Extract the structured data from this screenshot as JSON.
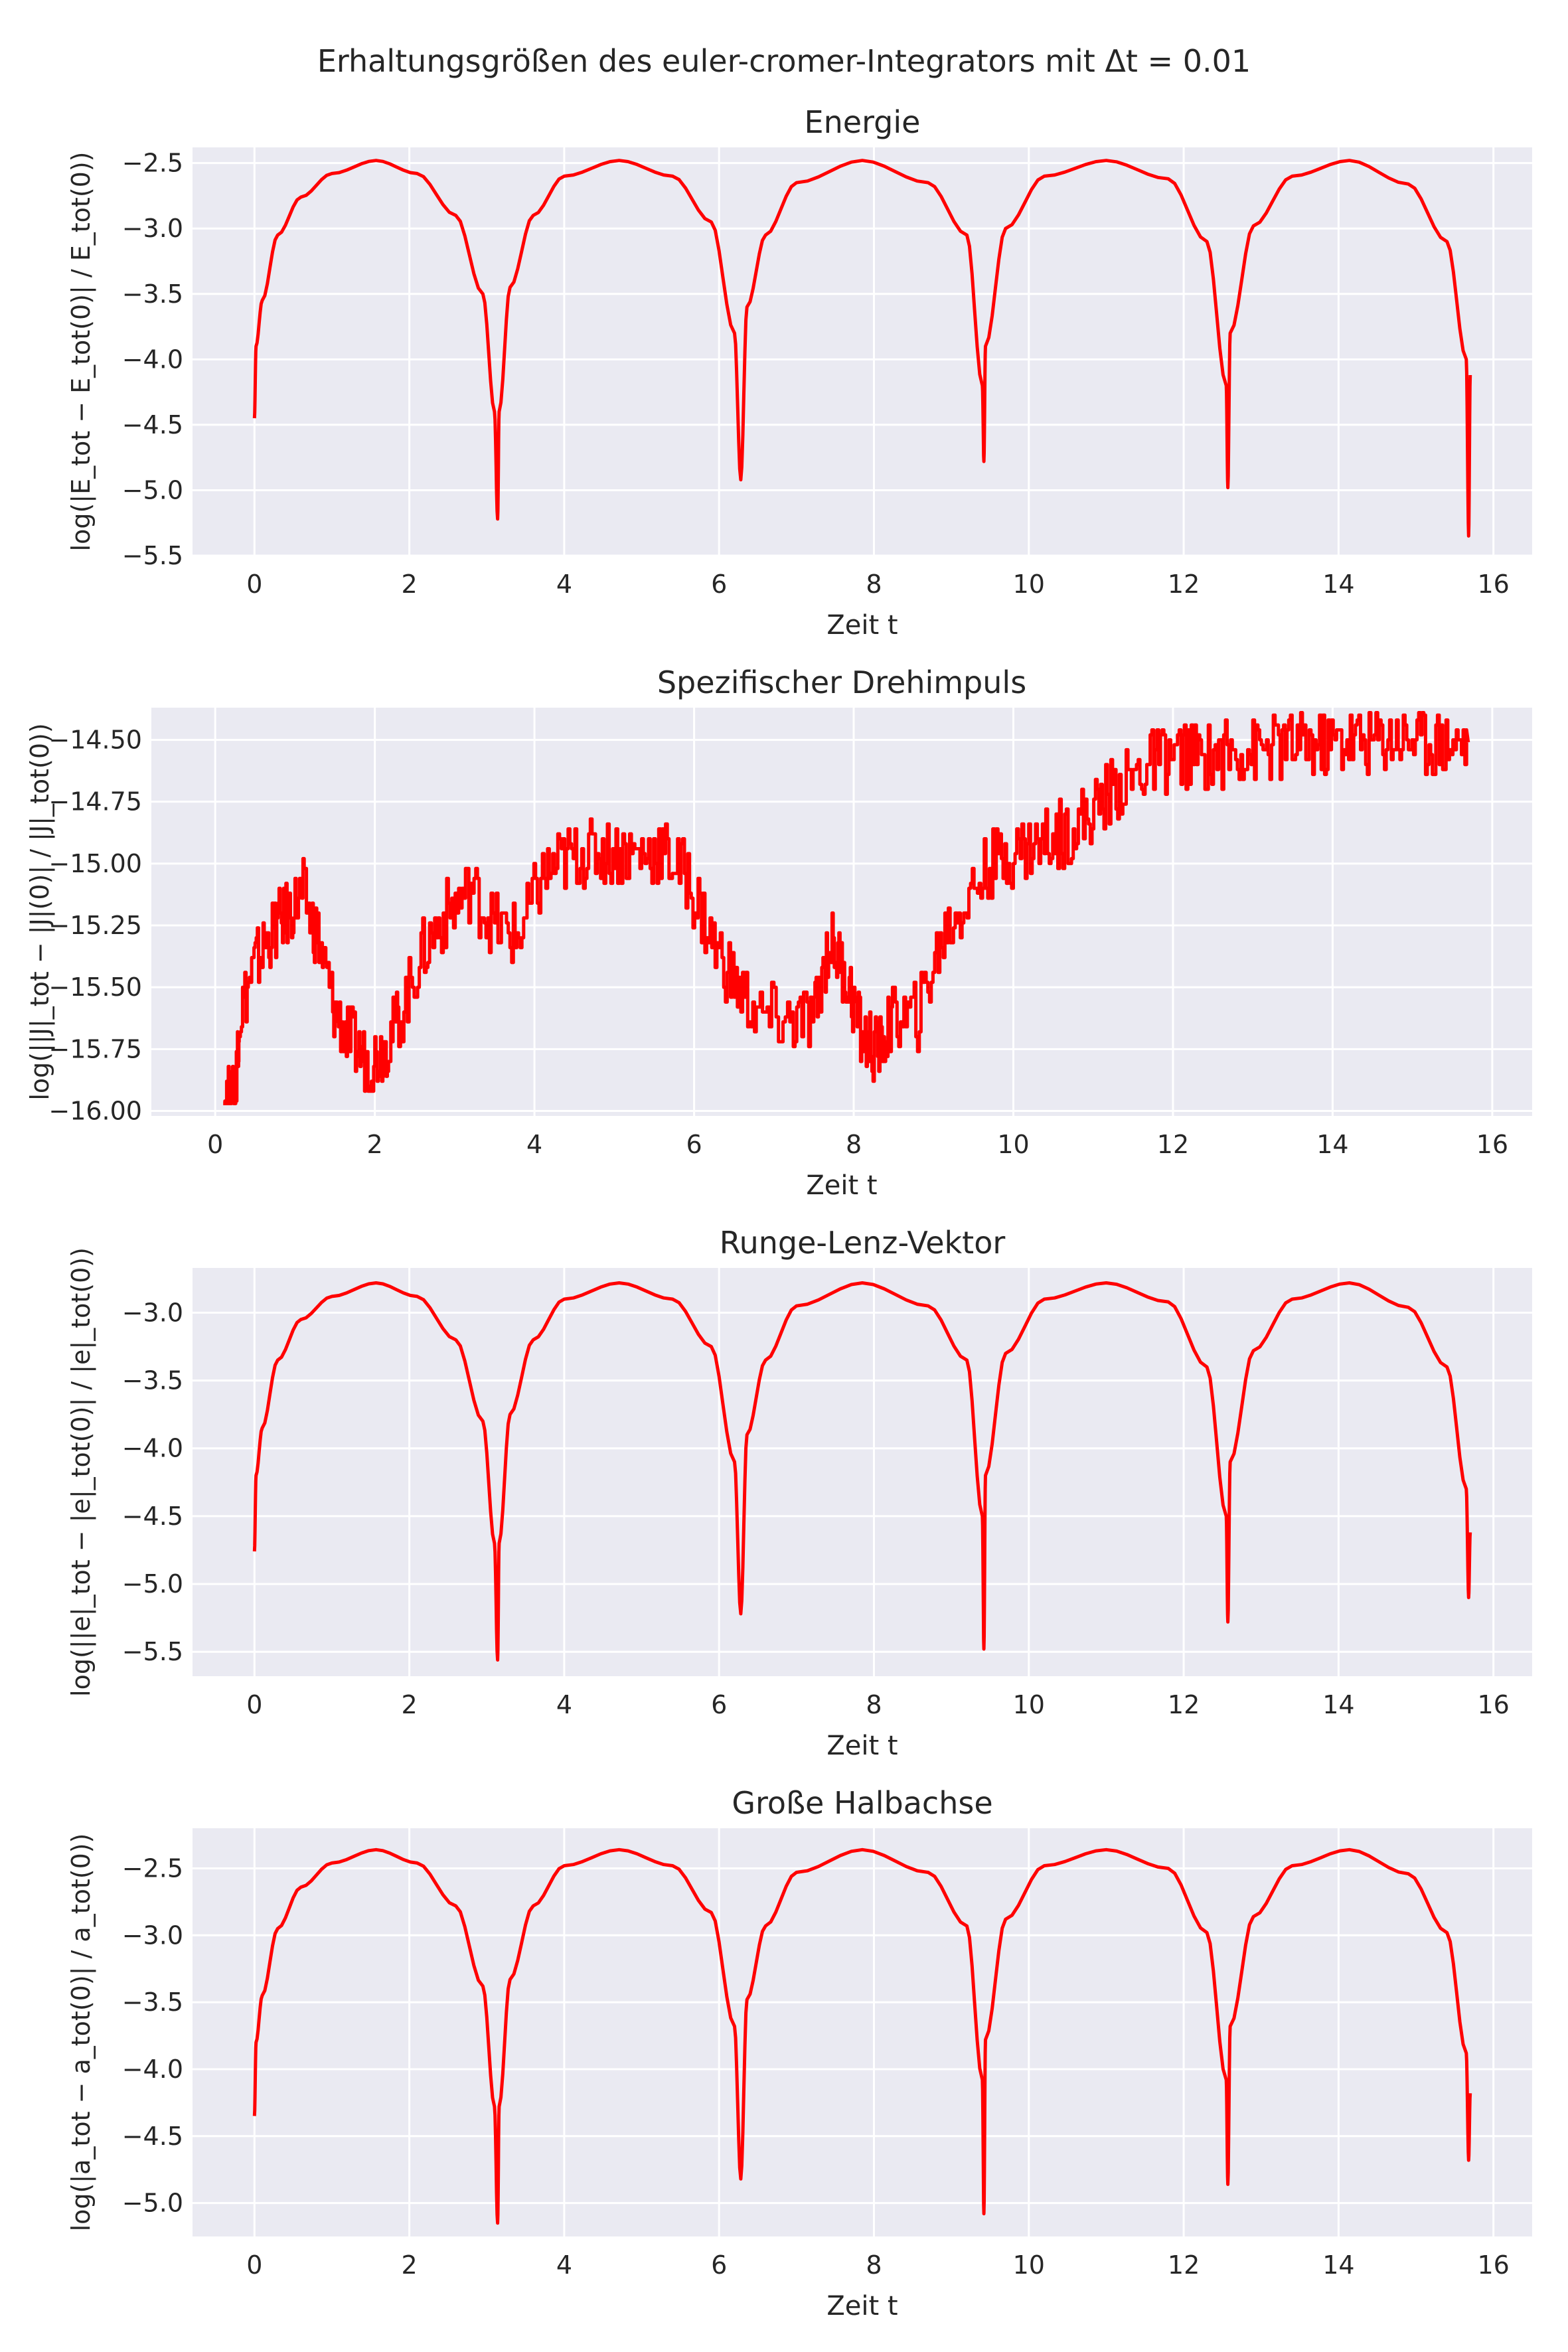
{
  "figure": {
    "suptitle": "Erhaltungsgrößen des euler-cromer-Integrators mit Δt = 0.01",
    "plot_bg": "#eaeaf2",
    "grid_color": "#ffffff",
    "line_color": "#ff0000"
  },
  "chart_data": [
    {
      "type": "line",
      "title": "Energie",
      "xlabel": "Zeit t",
      "ylabel": "log(|E_tot − E_tot(0)| / E_tot(0))",
      "xlim": [
        -0.8,
        16.5
      ],
      "ylim": [
        -5.5,
        -2.38
      ],
      "xticks": [
        0,
        2,
        4,
        6,
        8,
        10,
        12,
        14,
        16
      ],
      "yticks": [
        -2.5,
        -3.0,
        -3.5,
        -4.0,
        -4.5,
        -5.0,
        -5.5
      ],
      "ytick_labels": [
        "−2.5",
        "−3.0",
        "−3.5",
        "−4.0",
        "−4.5",
        "−5.0",
        "−5.5"
      ],
      "grid": true,
      "series": [
        {
          "color": "#ff0000",
          "pattern": "periodic_arches",
          "x": [
            0.0,
            0.02,
            0.1,
            0.3,
            0.6,
            1.0,
            1.57,
            2.1,
            2.6,
            2.95,
            3.1,
            3.14,
            3.16,
            3.3,
            3.6,
            4.0,
            4.71,
            5.4,
            5.9,
            6.2,
            6.28,
            6.36,
            6.6,
            7.0,
            7.85,
            8.7,
            9.2,
            9.4,
            9.42,
            9.44,
            9.7,
            10.2,
            11.0,
            11.8,
            12.3,
            12.55,
            12.57,
            12.6,
            12.9,
            13.4,
            14.14,
            14.9,
            15.4,
            15.65,
            15.68,
            15.7
          ],
          "y": [
            -4.45,
            -3.9,
            -3.55,
            -3.05,
            -2.76,
            -2.58,
            -2.48,
            -2.58,
            -2.9,
            -3.5,
            -4.4,
            -5.22,
            -4.4,
            -3.45,
            -2.9,
            -2.6,
            -2.48,
            -2.6,
            -2.95,
            -3.8,
            -4.92,
            -3.6,
            -3.05,
            -2.65,
            -2.48,
            -2.65,
            -3.05,
            -4.2,
            -4.78,
            -3.9,
            -3.0,
            -2.6,
            -2.48,
            -2.62,
            -3.1,
            -4.2,
            -4.98,
            -3.8,
            -2.98,
            -2.6,
            -2.48,
            -2.66,
            -3.1,
            -4.0,
            -5.35,
            -4.12
          ]
        }
      ]
    },
    {
      "type": "line",
      "title": "Spezifischer Drehimpuls",
      "xlabel": "Zeit t",
      "ylabel": "log(||J|_tot − |J|(0)| / |J|_tot(0))",
      "xlim": [
        -0.8,
        16.5
      ],
      "ylim": [
        -16.02,
        -14.37
      ],
      "xticks": [
        0,
        2,
        4,
        6,
        8,
        10,
        12,
        14,
        16
      ],
      "yticks": [
        -14.5,
        -14.75,
        -15.0,
        -15.25,
        -15.5,
        -15.75,
        -16.0
      ],
      "ytick_labels": [
        "−14.50",
        "−14.75",
        "−15.00",
        "−15.25",
        "−15.50",
        "−15.75",
        "−16.00"
      ],
      "grid": true,
      "series": [
        {
          "color": "#ff0000",
          "pattern": "noisy_steps",
          "x": [
            0.1,
            0.25,
            0.3,
            0.5,
            0.7,
            0.9,
            1.1,
            1.3,
            1.5,
            1.7,
            1.9,
            2.1,
            2.3,
            2.6,
            2.9,
            3.2,
            3.5,
            3.8,
            4.1,
            4.4,
            4.7,
            5.0,
            5.3,
            5.6,
            5.9,
            6.2,
            6.5,
            6.8,
            7.2,
            7.5,
            7.7,
            7.9,
            8.1,
            8.3,
            8.5,
            8.8,
            9.1,
            9.4,
            9.7,
            10.0,
            10.3,
            10.6,
            10.9,
            11.2,
            11.5,
            11.8,
            12.1,
            12.4,
            12.7,
            13.0,
            13.3,
            13.6,
            13.9,
            14.2,
            14.5,
            14.8,
            15.1,
            15.4,
            15.7
          ],
          "y": [
            -15.95,
            -15.95,
            -15.62,
            -15.4,
            -15.28,
            -15.2,
            -15.12,
            -15.32,
            -15.6,
            -15.72,
            -15.8,
            -15.75,
            -15.62,
            -15.35,
            -15.2,
            -15.1,
            -15.25,
            -15.3,
            -15.05,
            -14.98,
            -14.95,
            -14.95,
            -14.96,
            -14.95,
            -15.05,
            -15.3,
            -15.48,
            -15.62,
            -15.64,
            -15.62,
            -15.3,
            -15.45,
            -15.7,
            -15.76,
            -15.62,
            -15.62,
            -15.3,
            -15.15,
            -15.0,
            -14.95,
            -14.92,
            -14.88,
            -14.82,
            -14.72,
            -14.65,
            -14.58,
            -14.56,
            -14.57,
            -14.55,
            -14.54,
            -14.53,
            -14.52,
            -14.52,
            -14.5,
            -14.5,
            -14.48,
            -14.5,
            -14.51,
            -14.51
          ]
        }
      ]
    },
    {
      "type": "line",
      "title": "Runge-Lenz-Vektor",
      "xlabel": "Zeit t",
      "ylabel": "log(||e|_tot − |e|_tot(0)| / |e|_tot(0))",
      "xlim": [
        -0.8,
        16.5
      ],
      "ylim": [
        -5.68,
        -2.67
      ],
      "xticks": [
        0,
        2,
        4,
        6,
        8,
        10,
        12,
        14,
        16
      ],
      "yticks": [
        -3.0,
        -3.5,
        -4.0,
        -4.5,
        -5.0,
        -5.5
      ],
      "ytick_labels": [
        "−3.0",
        "−3.5",
        "−4.0",
        "−4.5",
        "−5.0",
        "−5.5"
      ],
      "grid": true,
      "series": [
        {
          "color": "#ff0000",
          "pattern": "periodic_arches",
          "x": [
            0.0,
            0.02,
            0.1,
            0.3,
            0.6,
            1.0,
            1.57,
            2.1,
            2.6,
            2.95,
            3.1,
            3.14,
            3.16,
            3.3,
            3.6,
            4.0,
            4.71,
            5.4,
            5.9,
            6.2,
            6.28,
            6.36,
            6.6,
            7.0,
            7.85,
            8.7,
            9.2,
            9.4,
            9.42,
            9.44,
            9.7,
            10.2,
            11.0,
            11.8,
            12.3,
            12.55,
            12.57,
            12.6,
            12.9,
            13.4,
            14.14,
            14.9,
            15.4,
            15.65,
            15.68,
            15.7
          ],
          "y": [
            -4.76,
            -4.2,
            -3.85,
            -3.35,
            -3.05,
            -2.88,
            -2.78,
            -2.88,
            -3.2,
            -3.8,
            -4.7,
            -5.56,
            -4.7,
            -3.75,
            -3.2,
            -2.9,
            -2.78,
            -2.9,
            -3.25,
            -4.1,
            -5.22,
            -3.9,
            -3.35,
            -2.95,
            -2.78,
            -2.95,
            -3.35,
            -4.5,
            -5.48,
            -4.2,
            -3.3,
            -2.9,
            -2.78,
            -2.92,
            -3.4,
            -4.5,
            -5.28,
            -4.1,
            -3.28,
            -2.9,
            -2.78,
            -2.96,
            -3.4,
            -4.3,
            -5.1,
            -4.62
          ]
        }
      ]
    },
    {
      "type": "line",
      "title": "Große Halbachse",
      "xlabel": "Zeit t",
      "ylabel": "log(|a_tot − a_tot(0)| / a_tot(0))",
      "xlim": [
        -0.8,
        16.5
      ],
      "ylim": [
        -5.25,
        -2.2
      ],
      "xticks": [
        0,
        2,
        4,
        6,
        8,
        10,
        12,
        14,
        16
      ],
      "yticks": [
        -2.5,
        -3.0,
        -3.5,
        -4.0,
        -4.5,
        -5.0
      ],
      "ytick_labels": [
        "−2.5",
        "−3.0",
        "−3.5",
        "−4.0",
        "−4.5",
        "−5.0"
      ],
      "grid": true,
      "series": [
        {
          "color": "#ff0000",
          "pattern": "periodic_arches",
          "x": [
            0.0,
            0.02,
            0.1,
            0.3,
            0.6,
            1.0,
            1.57,
            2.1,
            2.6,
            2.95,
            3.1,
            3.14,
            3.16,
            3.3,
            3.6,
            4.0,
            4.71,
            5.4,
            5.9,
            6.2,
            6.28,
            6.36,
            6.6,
            7.0,
            7.85,
            8.7,
            9.2,
            9.4,
            9.42,
            9.44,
            9.7,
            10.2,
            11.0,
            11.8,
            12.3,
            12.55,
            12.57,
            12.6,
            12.9,
            13.4,
            14.14,
            14.9,
            15.4,
            15.65,
            15.68,
            15.7
          ],
          "y": [
            -4.35,
            -3.8,
            -3.45,
            -2.95,
            -2.64,
            -2.46,
            -2.36,
            -2.46,
            -2.78,
            -3.38,
            -4.28,
            -5.15,
            -4.28,
            -3.33,
            -2.78,
            -2.48,
            -2.36,
            -2.48,
            -2.83,
            -3.68,
            -4.82,
            -3.48,
            -2.93,
            -2.53,
            -2.36,
            -2.53,
            -2.93,
            -4.08,
            -5.08,
            -3.78,
            -2.88,
            -2.48,
            -2.36,
            -2.5,
            -2.98,
            -4.08,
            -4.86,
            -3.68,
            -2.86,
            -2.48,
            -2.36,
            -2.54,
            -2.98,
            -3.88,
            -4.68,
            -4.18
          ]
        }
      ]
    }
  ]
}
